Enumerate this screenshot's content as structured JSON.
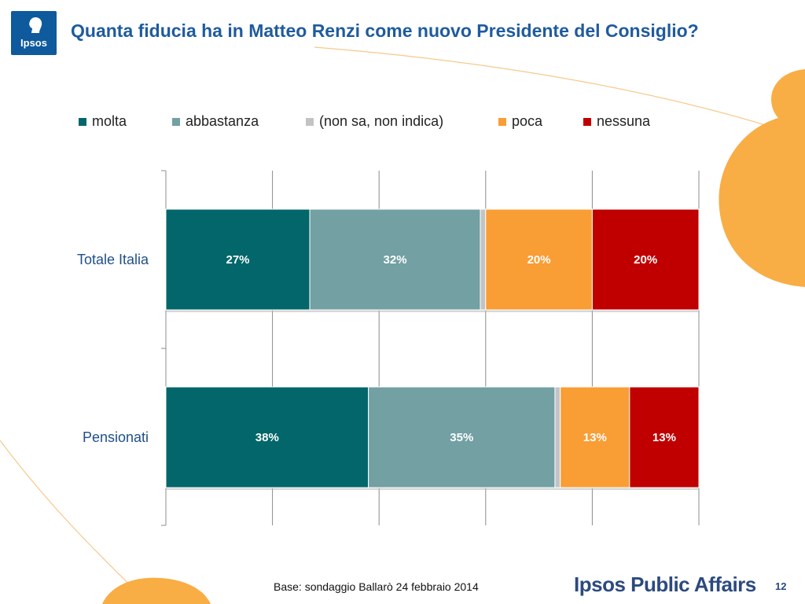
{
  "header": {
    "logo_text": "Ipsos",
    "title": "Quanta fiducia ha in Matteo Renzi come nuovo Presidente del Consiglio?"
  },
  "legend": {
    "items": [
      {
        "label": "molta",
        "color": "#02666a"
      },
      {
        "label": "abbastanza",
        "color": "#72a0a3"
      },
      {
        "label": "(non sa, non indica)",
        "color": "#c3c3c3"
      },
      {
        "label": "poca",
        "color": "#f99d35"
      },
      {
        "label": "nessuna",
        "color": "#c00000"
      }
    ]
  },
  "chart_data": {
    "type": "bar",
    "orientation": "horizontal",
    "stacked": true,
    "categories": [
      "Totale Italia",
      "Pensionati"
    ],
    "series": [
      {
        "name": "molta",
        "color": "#02666a",
        "values": [
          27,
          38
        ],
        "labels": [
          "27%",
          "38%"
        ]
      },
      {
        "name": "abbastanza",
        "color": "#72a0a3",
        "values": [
          32,
          35
        ],
        "labels": [
          "32%",
          "35%"
        ]
      },
      {
        "name": "(non sa, non indica)",
        "color": "#c3c3c3",
        "values": [
          1,
          1
        ],
        "labels": [
          "",
          ""
        ]
      },
      {
        "name": "poca",
        "color": "#f99d35",
        "values": [
          20,
          13
        ],
        "labels": [
          "20%",
          "13%"
        ]
      },
      {
        "name": "nessuna",
        "color": "#c00000",
        "values": [
          20,
          13
        ],
        "labels": [
          "20%",
          "13%"
        ]
      }
    ],
    "xlim": [
      0,
      100
    ],
    "grid": true,
    "legend_position": "top"
  },
  "footer": {
    "base_text": "Base: sondaggio Ballarò 24 febbraio 2014",
    "brand": "Ipsos Public Affairs",
    "page_number": "12"
  },
  "colors": {
    "title": "#1f5b9e",
    "logo_bg": "#0e5a9d",
    "accent_orange": "#f9ad45"
  }
}
